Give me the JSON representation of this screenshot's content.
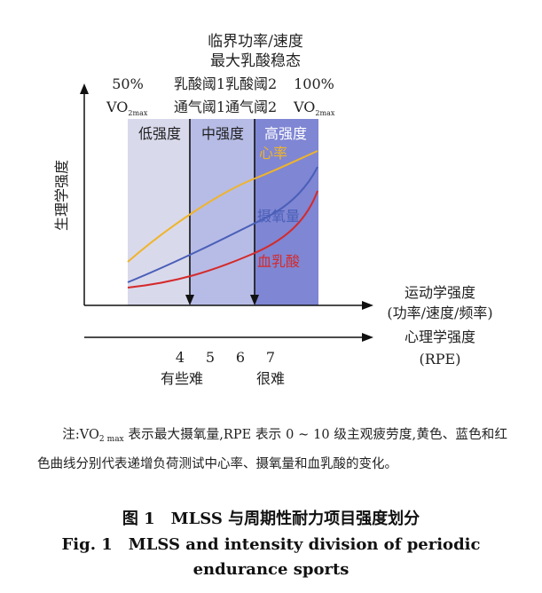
{
  "header": {
    "line1": "临界功率/速度",
    "line2": "最大乳酸稳态",
    "pct_left": "50%",
    "pct_right": "100%",
    "lactate_thresholds": "乳酸阈1乳酸阈2",
    "vo2_left": "VO",
    "vo2_left_sub": "2max",
    "vent_thresholds": "通气阈1通气阈2",
    "vo2_right": "VO",
    "vo2_right_sub": "2max"
  },
  "zones": [
    {
      "label": "低强度",
      "color": "#d9d9ec"
    },
    {
      "label": "中强度",
      "color": "#b7bce6"
    },
    {
      "label": "高强度",
      "color": "#7f86d4"
    }
  ],
  "y_axis_label": "生理学强度",
  "x_axis_label_1": "运动学强度",
  "x_axis_label_2": "(功率/速度/频率)",
  "rpe_axis_label_1": "心理学强度",
  "rpe_axis_label_2": "(RPE)",
  "rpe_ticks": [
    "4",
    "5",
    "6",
    "7"
  ],
  "rpe_words": [
    "有些难",
    "很难"
  ],
  "curves": [
    {
      "label": "心率",
      "color": "#f0b429"
    },
    {
      "label": "摄氧量",
      "color": "#4a5fb8"
    },
    {
      "label": "血乳酸",
      "color": "#d42a2a"
    }
  ],
  "note": {
    "prefix": "注:VO",
    "sub": "2 max",
    "text": " 表示最大摄氧量,RPE 表示 0 ~ 10 级主观疲劳度,黄色、蓝色和红色曲线分别代表递增负荷测试中心率、摄氧量和血乳酸的变化。"
  },
  "caption_zh": "图 1　MLSS 与周期性耐力项目强度划分",
  "caption_en_1": "Fig. 1　MLSS and intensity division of periodic",
  "caption_en_2": "endurance sports"
}
